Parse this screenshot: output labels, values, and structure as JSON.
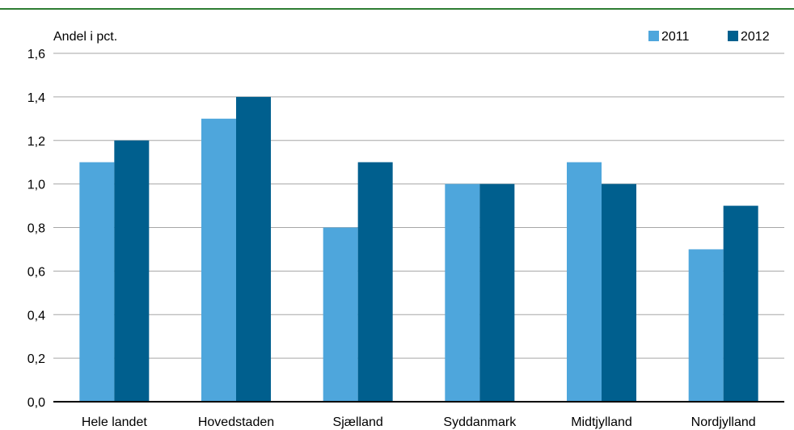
{
  "chart_data": {
    "type": "bar",
    "ylabel": "Andel i pct.",
    "categories": [
      "Hele landet",
      "Hovedstaden",
      "Sjælland",
      "Syddanmark",
      "Midtjylland",
      "Nordjylland"
    ],
    "series": [
      {
        "name": "2011",
        "values": [
          1.1,
          1.3,
          0.8,
          1.0,
          1.1,
          0.7
        ],
        "color": "#4ea6dc"
      },
      {
        "name": "2012",
        "values": [
          1.2,
          1.4,
          1.1,
          1.0,
          1.0,
          0.9
        ],
        "color": "#005f8e"
      }
    ],
    "ylim": [
      0,
      1.6
    ],
    "yticks": [
      "0,0",
      "0,2",
      "0,4",
      "0,6",
      "0,8",
      "1,0",
      "1,2",
      "1,4",
      "1,6"
    ],
    "grid": true,
    "legend_position": "top-right",
    "grid_color": "#a6a6a6",
    "frame_color": "#2e7d32"
  }
}
